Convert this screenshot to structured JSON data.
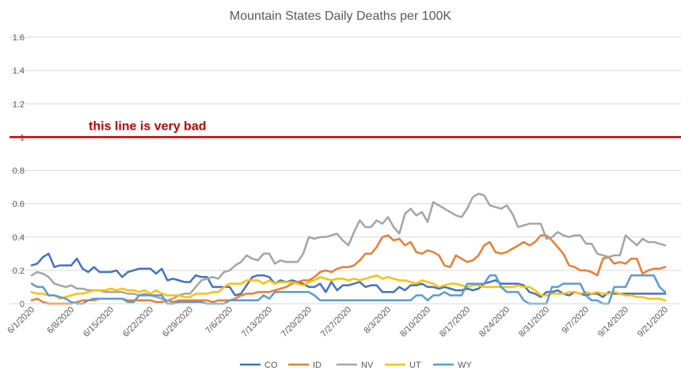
{
  "chart_data": {
    "type": "line",
    "title": "Mountain States Daily Deaths per 100K",
    "xlabel": "",
    "ylabel": "",
    "ylim": [
      0,
      1.6
    ],
    "yticks": [
      0,
      0.2,
      0.4,
      0.6,
      0.8,
      1,
      1.2,
      1.4,
      1.6
    ],
    "ytick_labels": [
      "0",
      "0.2",
      "0.4",
      "0.6",
      "0.8",
      "1",
      "1.2",
      "1.4",
      "1.6"
    ],
    "xtick_labels": [
      "6/1/2020",
      "6/8/2020",
      "6/15/2020",
      "6/22/2020",
      "6/29/2020",
      "7/6/2020",
      "7/13/2020",
      "7/20/2020",
      "7/27/2020",
      "8/3/2020",
      "8/10/2020",
      "8/17/2020",
      "8/24/2020",
      "8/31/2020",
      "9/7/2020",
      "9/14/2020",
      "9/21/2020"
    ],
    "grid": true,
    "legend_position": "bottom",
    "annotation": {
      "text": "this line is very bad",
      "y": 1,
      "color": "#c00000"
    },
    "series": [
      {
        "name": "CO",
        "color": "#4472c4",
        "values": [
          0.23,
          0.24,
          0.28,
          0.3,
          0.22,
          0.23,
          0.23,
          0.23,
          0.27,
          0.21,
          0.19,
          0.22,
          0.19,
          0.19,
          0.19,
          0.2,
          0.16,
          0.19,
          0.2,
          0.21,
          0.21,
          0.21,
          0.18,
          0.21,
          0.14,
          0.15,
          0.14,
          0.13,
          0.13,
          0.17,
          0.16,
          0.16,
          0.1,
          0.1,
          0.1,
          0.1,
          0.05,
          0.06,
          0.11,
          0.16,
          0.17,
          0.17,
          0.16,
          0.12,
          0.14,
          0.13,
          0.14,
          0.13,
          0.12,
          0.1,
          0.1,
          0.12,
          0.07,
          0.13,
          0.08,
          0.11,
          0.11,
          0.12,
          0.13,
          0.1,
          0.11,
          0.11,
          0.07,
          0.07,
          0.07,
          0.1,
          0.08,
          0.11,
          0.11,
          0.12,
          0.1,
          0.1,
          0.09,
          0.1,
          0.09,
          0.08,
          0.08,
          0.09,
          0.08,
          0.09,
          0.12,
          0.13,
          0.14,
          0.12,
          0.12,
          0.12,
          0.12,
          0.11,
          0.07,
          0.06,
          0.04,
          0.07,
          0.07,
          0.08,
          0.06,
          0.05,
          0.07,
          0.06,
          0.05,
          0.06,
          0.06,
          0.04,
          0.07,
          0.06,
          0.06,
          0.06,
          0.06,
          0.06,
          0.06,
          0.06,
          0.06,
          0.06,
          0.06
        ]
      },
      {
        "name": "ID",
        "color": "#ed7d31",
        "values": [
          0.02,
          0.03,
          0.01,
          0.0,
          0.0,
          0.0,
          0.0,
          0.0,
          0.01,
          0.02,
          0.02,
          0.02,
          0.03,
          0.03,
          0.03,
          0.03,
          0.03,
          0.02,
          0.02,
          0.02,
          0.02,
          0.02,
          0.01,
          0.01,
          0.02,
          0.01,
          0.02,
          0.02,
          0.02,
          0.02,
          0.02,
          0.02,
          0.01,
          0.02,
          0.02,
          0.02,
          0.03,
          0.05,
          0.06,
          0.06,
          0.07,
          0.07,
          0.07,
          0.08,
          0.09,
          0.1,
          0.12,
          0.13,
          0.14,
          0.14,
          0.16,
          0.19,
          0.2,
          0.19,
          0.21,
          0.22,
          0.22,
          0.23,
          0.26,
          0.3,
          0.3,
          0.34,
          0.4,
          0.41,
          0.38,
          0.39,
          0.35,
          0.37,
          0.31,
          0.3,
          0.32,
          0.31,
          0.29,
          0.23,
          0.22,
          0.29,
          0.27,
          0.25,
          0.26,
          0.29,
          0.35,
          0.37,
          0.31,
          0.3,
          0.31,
          0.33,
          0.35,
          0.37,
          0.35,
          0.37,
          0.41,
          0.41,
          0.38,
          0.34,
          0.3,
          0.23,
          0.22,
          0.2,
          0.2,
          0.19,
          0.17,
          0.27,
          0.28,
          0.24,
          0.25,
          0.24,
          0.27,
          0.27,
          0.18,
          0.2,
          0.21,
          0.21,
          0.22
        ]
      },
      {
        "name": "NV",
        "color": "#a5a5a5",
        "values": [
          0.17,
          0.19,
          0.18,
          0.16,
          0.12,
          0.11,
          0.1,
          0.11,
          0.09,
          0.09,
          0.08,
          0.08,
          0.08,
          0.07,
          0.07,
          0.07,
          0.07,
          0.06,
          0.06,
          0.05,
          0.06,
          0.05,
          0.04,
          0.03,
          0.02,
          0.03,
          0.05,
          0.06,
          0.06,
          0.1,
          0.14,
          0.15,
          0.16,
          0.15,
          0.19,
          0.2,
          0.23,
          0.25,
          0.29,
          0.27,
          0.26,
          0.3,
          0.3,
          0.24,
          0.26,
          0.25,
          0.25,
          0.25,
          0.3,
          0.4,
          0.39,
          0.4,
          0.4,
          0.41,
          0.42,
          0.38,
          0.35,
          0.43,
          0.5,
          0.46,
          0.46,
          0.5,
          0.48,
          0.52,
          0.46,
          0.42,
          0.54,
          0.57,
          0.53,
          0.55,
          0.49,
          0.61,
          0.59,
          0.57,
          0.55,
          0.53,
          0.52,
          0.57,
          0.64,
          0.66,
          0.65,
          0.59,
          0.58,
          0.57,
          0.59,
          0.54,
          0.46,
          0.47,
          0.48,
          0.48,
          0.48,
          0.39,
          0.4,
          0.43,
          0.41,
          0.4,
          0.41,
          0.41,
          0.36,
          0.36,
          0.3,
          0.29,
          0.28,
          0.29,
          0.29,
          0.41,
          0.38,
          0.35,
          0.39,
          0.37,
          0.37,
          0.36,
          0.35
        ]
      },
      {
        "name": "UT",
        "color": "#ffc000",
        "values": [
          0.07,
          0.06,
          0.06,
          0.05,
          0.05,
          0.03,
          0.04,
          0.05,
          0.06,
          0.06,
          0.07,
          0.08,
          0.08,
          0.08,
          0.09,
          0.08,
          0.09,
          0.08,
          0.08,
          0.07,
          0.08,
          0.06,
          0.08,
          0.06,
          0.05,
          0.05,
          0.05,
          0.04,
          0.04,
          0.06,
          0.06,
          0.06,
          0.07,
          0.07,
          0.1,
          0.12,
          0.12,
          0.12,
          0.14,
          0.14,
          0.14,
          0.12,
          0.14,
          0.12,
          0.13,
          0.13,
          0.13,
          0.12,
          0.11,
          0.13,
          0.14,
          0.16,
          0.15,
          0.14,
          0.15,
          0.15,
          0.14,
          0.15,
          0.14,
          0.15,
          0.16,
          0.17,
          0.15,
          0.16,
          0.15,
          0.14,
          0.14,
          0.13,
          0.12,
          0.14,
          0.13,
          0.12,
          0.1,
          0.11,
          0.12,
          0.12,
          0.11,
          0.1,
          0.11,
          0.11,
          0.1,
          0.1,
          0.1,
          0.1,
          0.1,
          0.1,
          0.11,
          0.1,
          0.1,
          0.08,
          0.05,
          0.05,
          0.06,
          0.06,
          0.06,
          0.07,
          0.07,
          0.06,
          0.07,
          0.06,
          0.07,
          0.06,
          0.06,
          0.07,
          0.06,
          0.05,
          0.05,
          0.04,
          0.04,
          0.03,
          0.03,
          0.03,
          0.02
        ]
      },
      {
        "name": "WY",
        "color": "#5b9bd5",
        "values": [
          0.12,
          0.1,
          0.1,
          0.05,
          0.05,
          0.04,
          0.03,
          0.01,
          0.0,
          0.0,
          0.02,
          0.03,
          0.03,
          0.03,
          0.03,
          0.03,
          0.03,
          0.01,
          0.01,
          0.05,
          0.05,
          0.05,
          0.05,
          0.05,
          0.0,
          0.0,
          0.01,
          0.01,
          0.01,
          0.01,
          0.01,
          0.0,
          0.0,
          0.0,
          0.0,
          0.02,
          0.02,
          0.02,
          0.02,
          0.02,
          0.02,
          0.05,
          0.03,
          0.07,
          0.07,
          0.07,
          0.07,
          0.07,
          0.07,
          0.07,
          0.05,
          0.02,
          0.02,
          0.02,
          0.02,
          0.02,
          0.02,
          0.02,
          0.02,
          0.02,
          0.02,
          0.02,
          0.02,
          0.02,
          0.02,
          0.02,
          0.02,
          0.02,
          0.05,
          0.05,
          0.02,
          0.05,
          0.05,
          0.07,
          0.05,
          0.05,
          0.05,
          0.12,
          0.12,
          0.12,
          0.12,
          0.17,
          0.17,
          0.1,
          0.07,
          0.07,
          0.07,
          0.02,
          0.0,
          0.0,
          0.0,
          0.0,
          0.1,
          0.1,
          0.12,
          0.12,
          0.12,
          0.12,
          0.05,
          0.02,
          0.02,
          0.0,
          0.0,
          0.1,
          0.1,
          0.1,
          0.17,
          0.17,
          0.17,
          0.17,
          0.17,
          0.1,
          0.07
        ]
      }
    ]
  }
}
